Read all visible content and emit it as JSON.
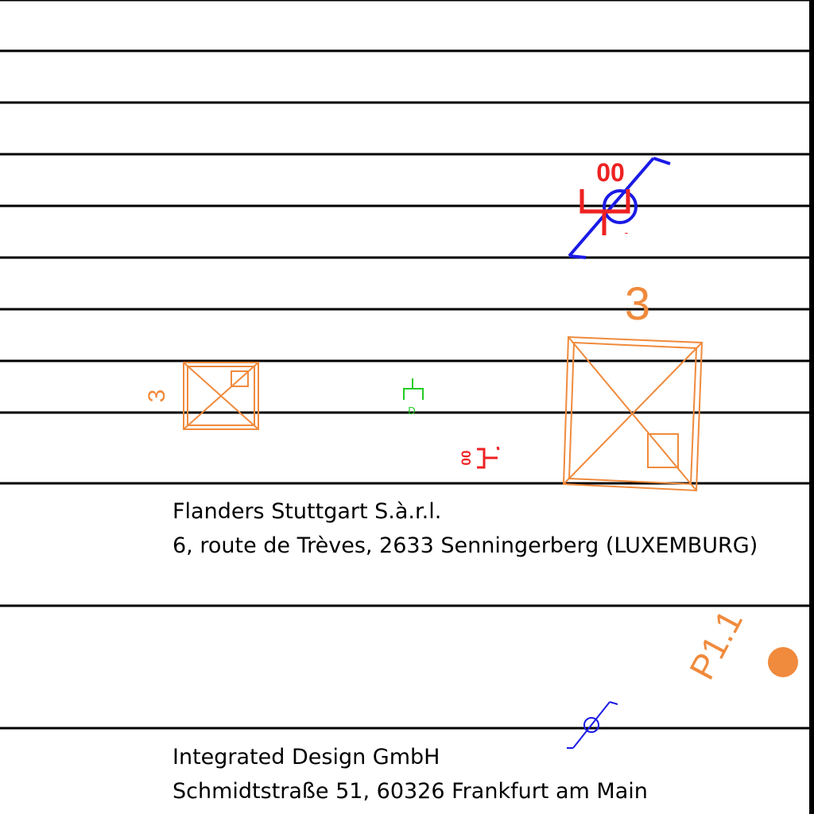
{
  "colors": {
    "background": "#ffffff",
    "lines": "#000000",
    "orange": "#f08a3c",
    "red": "#ee2222",
    "blue": "#1a1ae6",
    "green": "#22cc22"
  },
  "markings": {
    "column_label_large": "3",
    "column_label_small": "3",
    "point_label": "P1.1",
    "red_tag_top": "00",
    "red_tag_mid": "00",
    "red_tag_dash": "-",
    "green_tag": "D"
  },
  "address_blocks": [
    {
      "company": "Flanders Stuttgart S.à.r.l.",
      "address": "6, route de Trèves,  2633 Senningerberg (LUXEMBURG)"
    },
    {
      "company": "Integrated Design GmbH",
      "address": "Schmidtstraße 51,  60326 Frankfurt am Main"
    }
  ]
}
